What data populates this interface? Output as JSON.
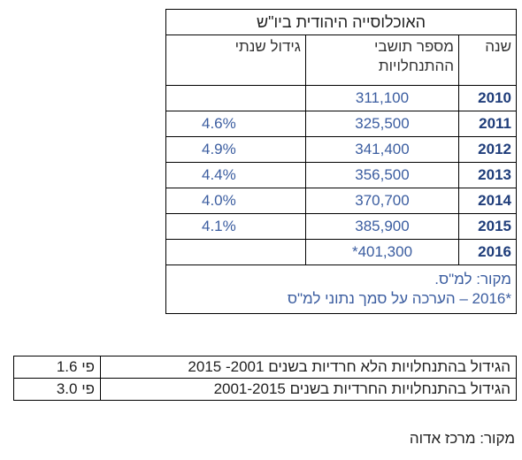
{
  "table1": {
    "title": "האוכלוסייה היהודית ביו\"ש",
    "headers": [
      "שנה",
      "מספר תושבי ההתנחלויות",
      "גידול שנתי"
    ],
    "rows": [
      {
        "year": "2010",
        "residents": "311,100"
      },
      {
        "year": "2011",
        "residents": "325,500",
        "growth": "4.6%"
      },
      {
        "year": "2012",
        "residents": "341,400",
        "growth": "4.9%"
      },
      {
        "year": "2013",
        "residents": "356,500",
        "growth": "4.4%"
      },
      {
        "year": "2014",
        "residents": "370,700",
        "growth": "4.0%"
      },
      {
        "year": "2015",
        "residents": "385,900",
        "growth": "4.1%"
      },
      {
        "year": "2016",
        "residents": "*401,300"
      }
    ],
    "notes": [
      "מקור: למ\"ס.",
      "*2016 – הערכה על סמך נתוני למ\"ס"
    ]
  },
  "table2": {
    "rows": [
      [
        "הגידול בהתנחלויות הלא חרדיות בשנים 2001- 2015",
        "פי 1.6"
      ],
      [
        "הגידול בהתנחלויות החרדיות בשנים 2001-2015",
        "פי 3.0"
      ]
    ]
  },
  "source": "מקור: מרכז אדוה"
}
